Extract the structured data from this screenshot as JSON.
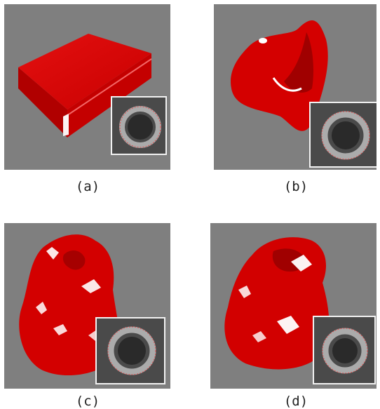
{
  "figure": {
    "panels": [
      {
        "id": "a",
        "caption": "(a)",
        "shape": "box"
      },
      {
        "id": "b",
        "caption": "(b)",
        "shape": "cup"
      },
      {
        "id": "c",
        "caption": "(c)",
        "shape": "lumpy"
      },
      {
        "id": "d",
        "caption": "(d)",
        "shape": "lumpy"
      }
    ],
    "colors": {
      "background": "#7f7f7f",
      "surface": "#e00000",
      "contour": "#e05050"
    }
  }
}
